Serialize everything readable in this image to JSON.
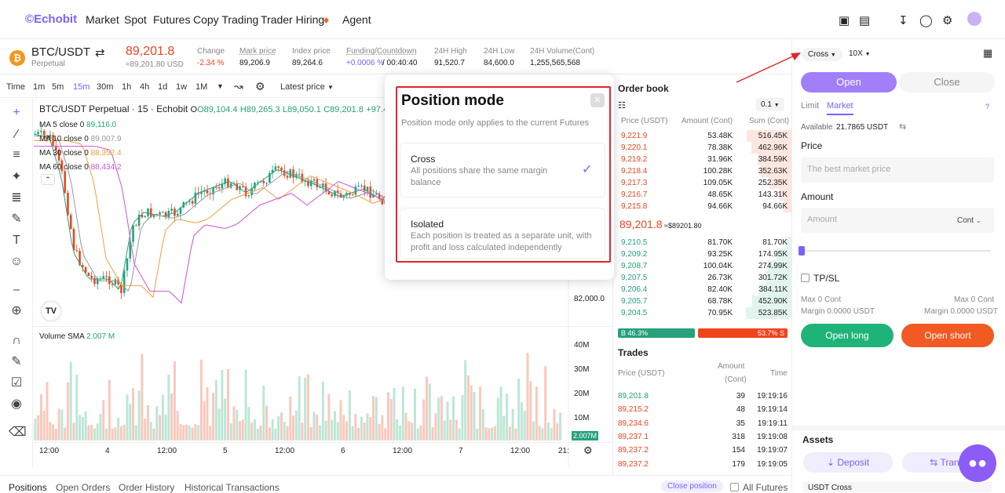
{
  "nav": {
    "logo": "Echobit",
    "items": [
      "Market",
      "Spot",
      "Futures",
      "Copy Trading",
      "Trader Hiring",
      "Agent"
    ]
  },
  "ticker": {
    "pair": "BTC/USDT",
    "type": "Perpetual",
    "price": "89,201.8",
    "price_usd": "≈89,201.80 USD",
    "stats": [
      {
        "label": "Change",
        "value": "-2.34 %"
      },
      {
        "label": "Mark price",
        "value": "89,206.9"
      },
      {
        "label": "Index price",
        "value": "89,264.6"
      },
      {
        "label": "Funding/Countdown",
        "value_a": "+0.0006 %",
        "value_b": " / 00:40:40"
      },
      {
        "label": "24H High",
        "value": "91,520.7"
      },
      {
        "label": "24H Low",
        "value": "84,600.0"
      },
      {
        "label": "24H Volume(Cont)",
        "value": "1,255,565,568"
      }
    ]
  },
  "toolbar": {
    "items": [
      "Time",
      "1m",
      "5m",
      "15m",
      "30m",
      "1h",
      "4h",
      "1d",
      "1w",
      "1M"
    ],
    "latest_price": "Latest price"
  },
  "chart": {
    "title": "BTC/USDT Perpetual · 15 · Echobit",
    "ohlc": {
      "o": "O89,104.4",
      "h": "H89,265.3",
      "l": "L89,050.1",
      "c": "C89,201.8",
      "chg": "+97.4 (+0.11"
    },
    "ma": [
      {
        "label": "MA 5 close 0",
        "value": "89,116.0",
        "color": "#26a17b"
      },
      {
        "label": "MA 10 close 0",
        "value": "89,007.9",
        "color": "#999"
      },
      {
        "label": "MA 30 close 0",
        "value": "88,352.4",
        "color": "#f2a03c"
      },
      {
        "label": "MA 60 close 0",
        "value": "88,434.2",
        "color": "#c855d8"
      }
    ],
    "price_label": "82,000.0",
    "volume_label": "Volume SMA",
    "volume_value": "2.007 M",
    "volume_axis": [
      "40M",
      "30M",
      "20M",
      "10M"
    ],
    "volume_current": "2.007M",
    "x_axis": [
      "12:00",
      "4",
      "12:00",
      "5",
      "12:00",
      "6",
      "12:00",
      "7",
      "12:00",
      "21:"
    ]
  },
  "modal": {
    "title": "Position mode",
    "subtitle": "Position mode only applies to the current Futures",
    "cross_title": "Cross",
    "cross_desc": "All positions share the same margin balance",
    "isolated_title": "Isolated",
    "isolated_desc": "Each position is treated as a separate unit, with profit and loss calculated independently"
  },
  "orderbook": {
    "title": "Order book",
    "precision": "0.1",
    "headers": [
      "Price (USDT)",
      "Amount (Cont)",
      "Sum (Cont)"
    ],
    "asks": [
      [
        "9,221.9",
        "53.48K",
        "516.45K"
      ],
      [
        "9,220.1",
        "78.38K",
        "462.96K"
      ],
      [
        "9,219.2",
        "31.96K",
        "384.59K"
      ],
      [
        "9,218.4",
        "100.28K",
        "352.63K"
      ],
      [
        "9,217.3",
        "109.05K",
        "252.35K"
      ],
      [
        "9,216.7",
        "48.65K",
        "143.31K"
      ],
      [
        "9,215.8",
        "94.66K",
        "94.66K"
      ]
    ],
    "mid": "89,201.8",
    "mid_usd": "≈$89201.80",
    "bids": [
      [
        "9,210.5",
        "81.70K",
        "81.70K"
      ],
      [
        "9,209.2",
        "93.25K",
        "174.95K"
      ],
      [
        "9,208.7",
        "100.04K",
        "274.99K"
      ],
      [
        "9,207.5",
        "26.73K",
        "301.72K"
      ],
      [
        "9,206.4",
        "82.40K",
        "384.11K"
      ],
      [
        "9,205.7",
        "68.78K",
        "452.90K"
      ],
      [
        "9,204.5",
        "70.95K",
        "523.85K"
      ]
    ],
    "buy_ratio": "B 46.3%",
    "sell_ratio": "53.7% S",
    "buy_pct": 46.3
  },
  "trades": {
    "title": "Trades",
    "headers": [
      "Price (USDT)",
      "Amount",
      "(Cont)",
      "Time"
    ],
    "rows": [
      [
        "89,201.8",
        "39",
        "19:19:16"
      ],
      [
        "89,215.2",
        "48",
        "19:19:14"
      ],
      [
        "89,234.6",
        "35",
        "19:19:11"
      ],
      [
        "89,237.1",
        "318",
        "19:19:08"
      ],
      [
        "89,237.2",
        "154",
        "19:19:07"
      ],
      [
        "89,237.2",
        "179",
        "19:19:05"
      ]
    ]
  },
  "panel": {
    "margin_mode": "Cross",
    "leverage": "10X",
    "open": "Open",
    "close": "Close",
    "tab_limit": "Limit",
    "tab_market": "Market",
    "available_label": "Available",
    "available_value": "21.7865 USDT",
    "price_label": "Price",
    "price_placeholder": "The best market price",
    "amount_label": "Amount",
    "amount_placeholder": "Amount",
    "amount_unit": "Cont",
    "tpsl": "TP/SL",
    "max_left": "Max 0 Cont",
    "max_right": "Max 0 Cont",
    "margin_left": "Margin 0.0000 USDT",
    "margin_right": "Margin 0.0000 USDT",
    "open_long": "Open long",
    "open_short": "Open short",
    "assets": "Assets",
    "deposit": "Deposit",
    "transfer": "Trans",
    "usdt_cross": "USDT Cross"
  },
  "bottom": {
    "tabs": [
      "Positions",
      "Open Orders",
      "Order History",
      "Historical Transactions"
    ],
    "close_position": "Close position",
    "all_futures": "All Futures"
  },
  "colors": {
    "accent": "#8b5cf6",
    "green": "#26a17b",
    "red": "#f0441d",
    "annotation": "#e0262a"
  }
}
